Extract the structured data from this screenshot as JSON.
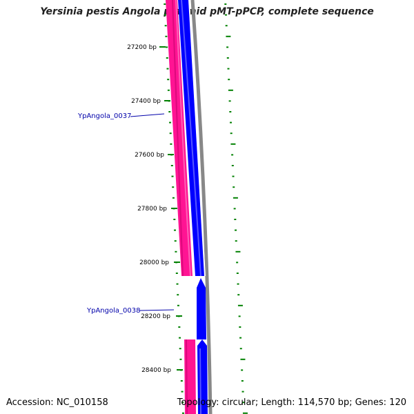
{
  "title": "Yersinia pestis Angola plasmid pMT-pPCP, complete sequence",
  "accession": "Accession: NC_010158",
  "summary": "Topology: circular; Length: 114,570 bp; Genes: 120",
  "tick_labels": [
    "27200 bp",
    "27400 bp",
    "27600 bp",
    "27800 bp",
    "28000 bp",
    "28200 bp",
    "28400 bp"
  ],
  "gene_labels": [
    "YpAngola_0037",
    "YpAngola_0038"
  ],
  "colors": {
    "forward_cds": "#ff1493",
    "reverse_cds": "#0000ff",
    "backbone": "#888888",
    "ticks": "#008000",
    "label": "#0000aa"
  }
}
